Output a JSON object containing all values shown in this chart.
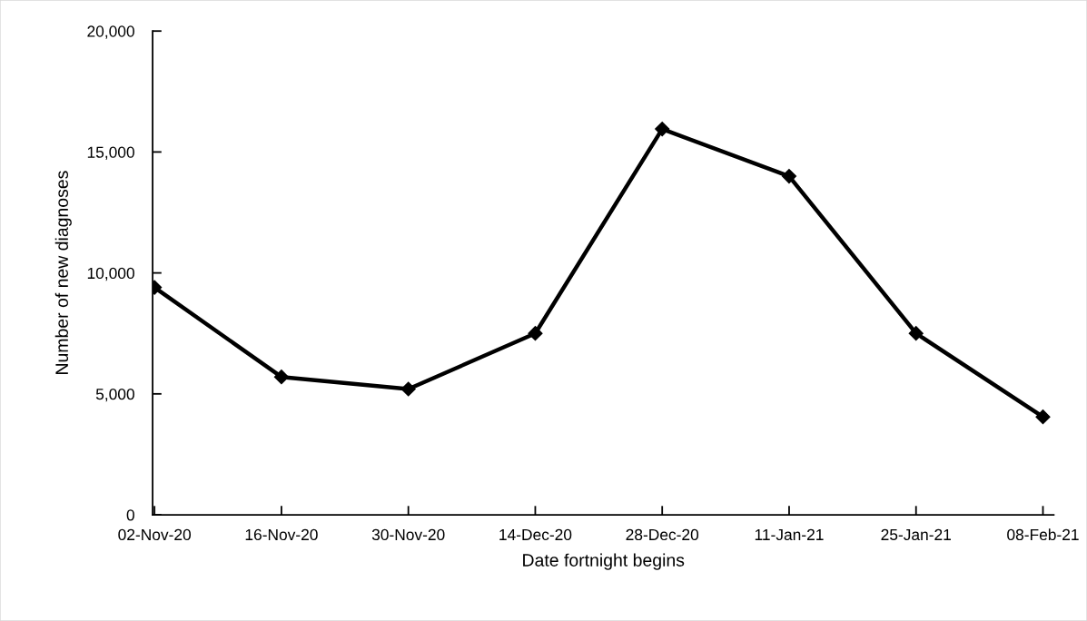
{
  "chart_data": {
    "type": "line",
    "xlabel": "Date fortnight begins",
    "ylabel": "Number of new diagnoses",
    "categories": [
      "02-Nov-20",
      "16-Nov-20",
      "30-Nov-20",
      "14-Dec-20",
      "28-Dec-20",
      "11-Jan-21",
      "25-Jan-21",
      "08-Feb-21"
    ],
    "series": [
      {
        "color": "#000000",
        "values": [
          9400,
          5700,
          5200,
          7500,
          15950,
          14000,
          7500,
          4050
        ]
      }
    ],
    "ylim": [
      0,
      20000
    ],
    "yticks": [
      0,
      {
        "value": 5000,
        "label": "5,000"
      },
      {
        "value": 10000,
        "label": "10,000"
      },
      {
        "value": 15000,
        "label": "15,000"
      },
      {
        "value": 20000,
        "label": "20,000"
      }
    ],
    "marker": "diamond",
    "line_style": "solid"
  }
}
